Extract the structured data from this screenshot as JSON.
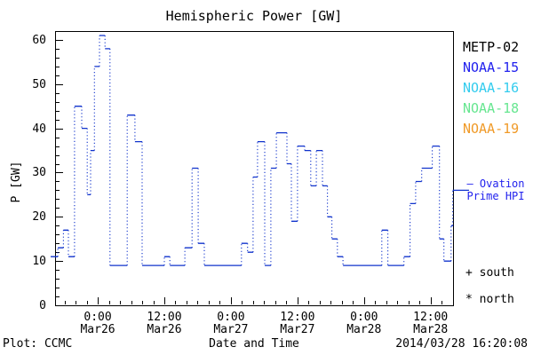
{
  "title": "Hemispheric Power [GW]",
  "axes": {
    "ylabel": "P [GW]",
    "xlabel": "Date and Time"
  },
  "legend": [
    {
      "label": "METP-02",
      "color": "#000000"
    },
    {
      "label": "NOAA-15",
      "color": "#2222ee"
    },
    {
      "label": "NOAA-16",
      "color": "#33ccee"
    },
    {
      "label": "NOAA-18",
      "color": "#66e690"
    },
    {
      "label": "NOAA-19",
      "color": "#f09a28"
    }
  ],
  "annotations": {
    "ovation_line1": "– Ovation",
    "ovation_line2": "Prime HPI",
    "ovation_color": "#2222ee",
    "south": "+ south",
    "north": "* north"
  },
  "footer": {
    "credit": "Plot: CCMC",
    "timestamp": "2014/03/28 16:20:08"
  },
  "chart_data": {
    "type": "line",
    "subtype": "step-post, solid horizontal segments with dotted vertical connectors",
    "title": "Hemispheric Power [GW]",
    "xlabel": "Date and Time",
    "ylabel": "P [GW]",
    "ylim": [
      0,
      62
    ],
    "yticks": [
      "0",
      "10",
      "20",
      "30",
      "40",
      "50",
      "60"
    ],
    "y_minor_step_gw": 2,
    "x_hours_range": [
      -7.7,
      64.05
    ],
    "x_hours_reference": "hours relative to Mar26 00:00",
    "x_minor_step_hours": 2,
    "xticks": [
      {
        "hour": 0,
        "time": "0:00",
        "date": "Mar26"
      },
      {
        "hour": 12,
        "time": "12:00",
        "date": "Mar26"
      },
      {
        "hour": 24,
        "time": "0:00",
        "date": "Mar27"
      },
      {
        "hour": 36,
        "time": "12:00",
        "date": "Mar27"
      },
      {
        "hour": 48,
        "time": "0:00",
        "date": "Mar28"
      },
      {
        "hour": 60,
        "time": "12:00",
        "date": "Mar28"
      }
    ],
    "grid": false,
    "legend_position": "right outside",
    "series": [
      {
        "name": "NOAA-15 Ovation Prime HPI",
        "color": "#1133cc",
        "step_points_hour_gw": [
          [
            -7.7,
            11
          ],
          [
            -7.2,
            13
          ],
          [
            -6.2,
            17
          ],
          [
            -5.3,
            11
          ],
          [
            -4.2,
            45
          ],
          [
            -2.9,
            40
          ],
          [
            -1.9,
            25
          ],
          [
            -1.3,
            35
          ],
          [
            -0.6,
            54
          ],
          [
            0.3,
            61
          ],
          [
            1.3,
            58
          ],
          [
            2.2,
            9
          ],
          [
            5.3,
            43
          ],
          [
            6.7,
            37
          ],
          [
            8.0,
            9
          ],
          [
            12.0,
            11
          ],
          [
            13.0,
            9
          ],
          [
            15.7,
            13
          ],
          [
            17.0,
            31
          ],
          [
            18.1,
            14
          ],
          [
            19.2,
            9
          ],
          [
            25.9,
            14
          ],
          [
            27.0,
            12
          ],
          [
            28.0,
            29
          ],
          [
            28.8,
            37
          ],
          [
            30.1,
            9
          ],
          [
            31.2,
            31
          ],
          [
            32.2,
            39
          ],
          [
            34.1,
            32
          ],
          [
            34.9,
            19
          ],
          [
            36.0,
            36
          ],
          [
            37.3,
            35
          ],
          [
            38.4,
            27
          ],
          [
            39.4,
            35
          ],
          [
            40.5,
            27
          ],
          [
            41.4,
            20
          ],
          [
            42.2,
            15
          ],
          [
            43.2,
            11
          ],
          [
            44.2,
            9
          ],
          [
            51.2,
            17
          ],
          [
            52.3,
            9
          ],
          [
            55.2,
            11
          ],
          [
            56.3,
            23
          ],
          [
            57.3,
            28
          ],
          [
            58.4,
            31
          ],
          [
            60.3,
            36
          ],
          [
            61.6,
            15
          ],
          [
            62.4,
            10
          ],
          [
            63.7,
            18
          ],
          [
            64.0,
            26
          ]
        ]
      }
    ],
    "end_value_gw": 26
  }
}
